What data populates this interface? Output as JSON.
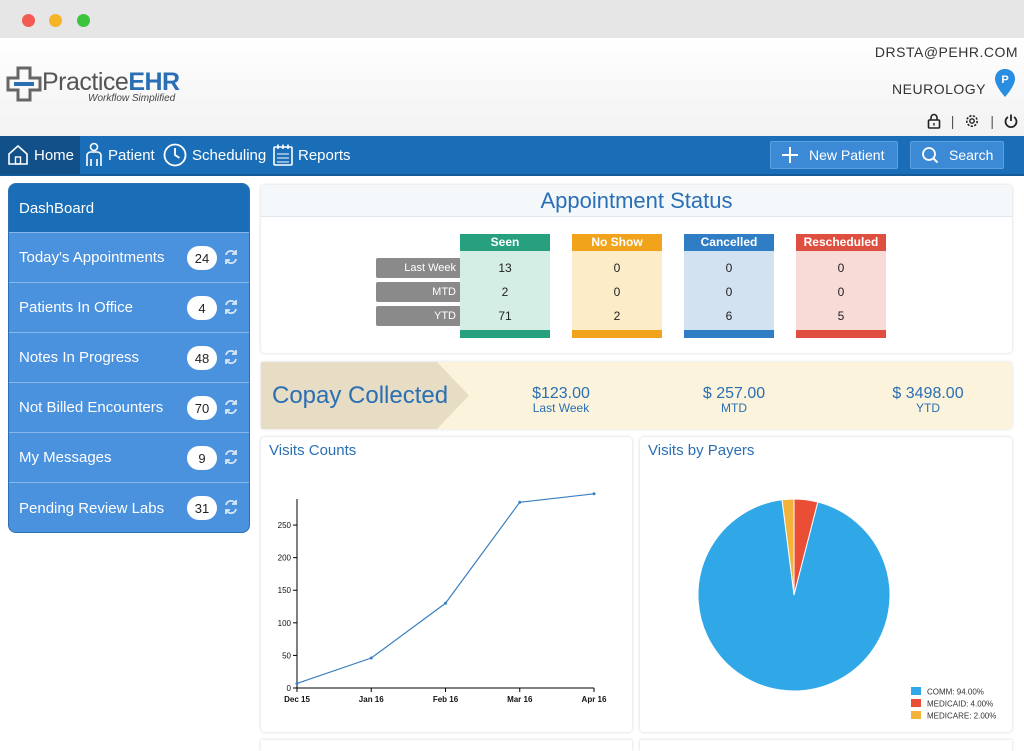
{
  "window": {
    "controls": [
      "close",
      "minimize",
      "maximize"
    ]
  },
  "header": {
    "logo_main": "Practice",
    "logo_ehr": "EHR",
    "logo_tagline": "Workflow Simplified",
    "user_email": "DRSTA@PEHR.COM",
    "specialty": "NEUROLOGY",
    "pin_letter": "P",
    "icons": [
      "lock-icon",
      "gear-icon",
      "power-icon"
    ]
  },
  "nav": {
    "home": "Home",
    "patient": "Patient",
    "scheduling": "Scheduling",
    "reports": "Reports",
    "new_patient": "New Patient",
    "search": "Search"
  },
  "sidebar": {
    "title": "DashBoard",
    "items": [
      {
        "label": "Today's Appointments",
        "count": "24"
      },
      {
        "label": "Patients In Office",
        "count": "4"
      },
      {
        "label": "Notes In Progress",
        "count": "48"
      },
      {
        "label": "Not Billed Encounters",
        "count": "70"
      },
      {
        "label": "My Messages",
        "count": "9"
      },
      {
        "label": "Pending Review Labs",
        "count": "31"
      }
    ]
  },
  "appointment_status": {
    "title": "Appointment Status",
    "rows": [
      "Last Week",
      "MTD",
      "YTD"
    ],
    "columns": [
      {
        "label": "Seen",
        "values": [
          "13",
          "2",
          "71"
        ],
        "head_color": "#26a07e",
        "body_color": "#d4eee6"
      },
      {
        "label": "No Show",
        "values": [
          "0",
          "0",
          "2"
        ],
        "head_color": "#f0a31b",
        "body_color": "#fcecc8"
      },
      {
        "label": "Cancelled",
        "values": [
          "0",
          "0",
          "6"
        ],
        "head_color": "#2f7dc4",
        "body_color": "#d3e2f1"
      },
      {
        "label": "Rescheduled",
        "values": [
          "0",
          "0",
          "5"
        ],
        "head_color": "#df4f40",
        "body_color": "#f8dad6"
      }
    ]
  },
  "copay": {
    "title": "Copay Collected",
    "amounts": [
      {
        "value": "$123.00",
        "label": "Last Week"
      },
      {
        "value": "$ 257.00",
        "label": "MTD"
      },
      {
        "value": "$ 3498.00",
        "label": "YTD"
      }
    ]
  },
  "chart_data": [
    {
      "type": "line",
      "title": "Visits Counts",
      "categories": [
        "Dec 15",
        "Jan 16",
        "Feb 16",
        "Mar 16",
        "Apr 16"
      ],
      "y_ticks": [
        0,
        50,
        100,
        150,
        200,
        250
      ],
      "ylim": [
        0,
        290
      ],
      "series": [
        {
          "name": "Visits",
          "values": [
            7,
            46,
            130,
            285,
            298
          ]
        }
      ],
      "x_points": [
        0,
        1,
        2,
        3,
        4
      ],
      "color": "#3b7fc0"
    },
    {
      "type": "pie",
      "title": "Visits by Payers",
      "slices": [
        {
          "label": "COMM",
          "value": 94.0,
          "legend": "COMM: 94.00%",
          "color": "#30a8e8"
        },
        {
          "label": "MEDICAID",
          "value": 4.0,
          "legend": "MEDICAID: 4.00%",
          "color": "#ea4f35"
        },
        {
          "label": "MEDICARE",
          "value": 2.0,
          "legend": "MEDICARE: 2.00%",
          "color": "#f3b23a"
        }
      ],
      "legend_position": "bottom-right"
    }
  ]
}
